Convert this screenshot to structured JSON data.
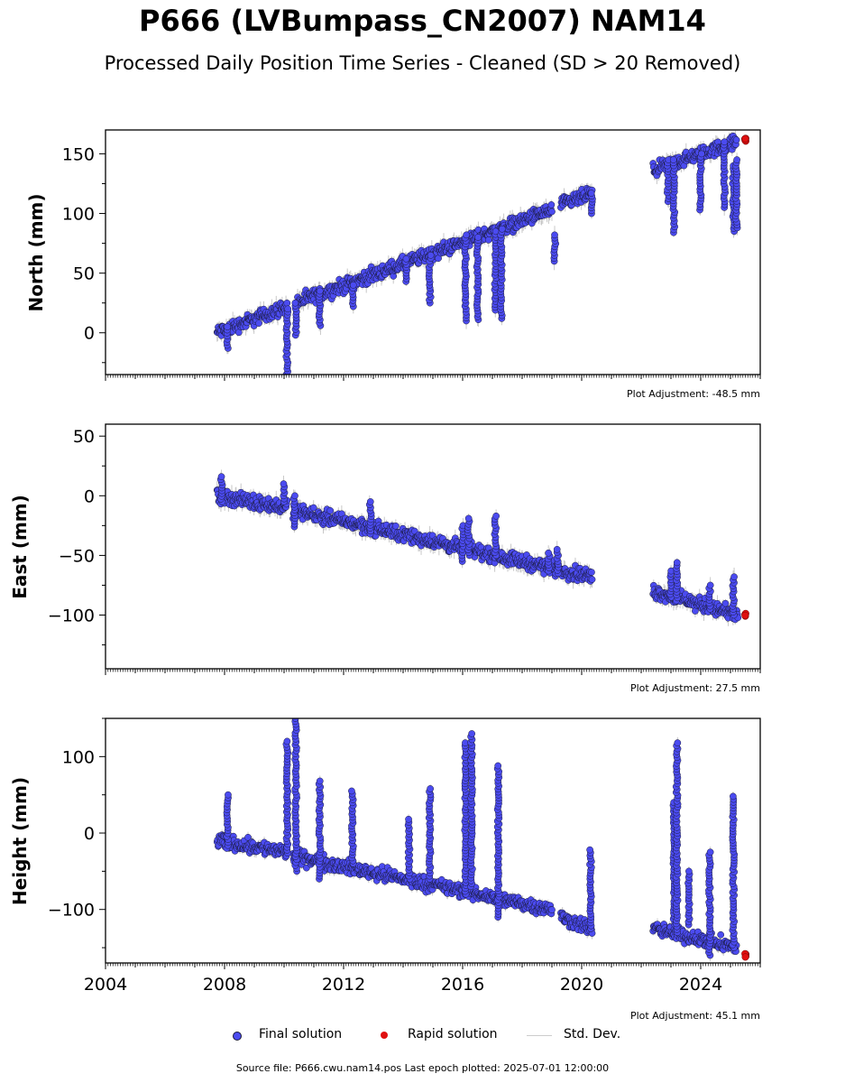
{
  "title": "P666 (LVBumpass_CN2007) NAM14",
  "subtitle": "Processed Daily Position Time Series - Cleaned (SD > 20 Removed)",
  "footer": "Source file: P666.cwu.nam14.pos  Last epoch plotted: 2025-07-01 12:00:00",
  "legend": {
    "final": "Final solution",
    "rapid": "Rapid solution",
    "std": "Std. Dev."
  },
  "colors": {
    "final": "#4b4bf0",
    "final_edge": "#1a1a3a",
    "rapid": "#e01010",
    "std": "#c8c8c8"
  },
  "chart_data": [
    {
      "type": "scatter",
      "ylabel": "North (mm)",
      "ylim": [
        -35,
        170
      ],
      "yticks": [
        0,
        50,
        100,
        150
      ],
      "ytick_labels": [
        "0",
        "50",
        "100",
        "150"
      ],
      "xlim": [
        2004,
        2026
      ],
      "show_x_labels": false,
      "adjustment": "Plot Adjustment: -48.5 mm",
      "segments": [
        {
          "x0": 2007.75,
          "x1": 2010.1,
          "y0": 0,
          "y1": 22
        },
        {
          "x0": 2010.4,
          "x1": 2019.0,
          "y0": 25,
          "y1": 103
        },
        {
          "x0": 2019.3,
          "x1": 2020.35,
          "y0": 107,
          "y1": 117
        },
        {
          "x0": 2022.4,
          "x1": 2025.2,
          "y0": 136,
          "y1": 160
        }
      ],
      "excursions": [
        {
          "x": 2008.1,
          "min": -13,
          "max": 5
        },
        {
          "x": 2010.1,
          "min": -35,
          "max": 20
        },
        {
          "x": 2010.4,
          "min": -2,
          "max": 25
        },
        {
          "x": 2011.2,
          "min": 6,
          "max": 35
        },
        {
          "x": 2012.3,
          "min": 22,
          "max": 40
        },
        {
          "x": 2014.1,
          "min": 43,
          "max": 62
        },
        {
          "x": 2014.9,
          "min": 25,
          "max": 65
        },
        {
          "x": 2016.1,
          "min": 10,
          "max": 82
        },
        {
          "x": 2016.5,
          "min": 11,
          "max": 80
        },
        {
          "x": 2017.1,
          "min": 19,
          "max": 85
        },
        {
          "x": 2017.3,
          "min": 12,
          "max": 87
        },
        {
          "x": 2019.1,
          "min": 60,
          "max": 82
        },
        {
          "x": 2020.35,
          "min": 100,
          "max": 117
        },
        {
          "x": 2022.9,
          "min": 110,
          "max": 145
        },
        {
          "x": 2023.1,
          "min": 84,
          "max": 145
        },
        {
          "x": 2024.0,
          "min": 103,
          "max": 150
        },
        {
          "x": 2024.8,
          "min": 105,
          "max": 160
        },
        {
          "x": 2025.1,
          "min": 85,
          "max": 140
        },
        {
          "x": 2025.2,
          "min": 88,
          "max": 145
        }
      ],
      "rapid": {
        "x": 2025.5,
        "y": 162
      }
    },
    {
      "type": "scatter",
      "ylabel": "East (mm)",
      "ylim": [
        -145,
        60
      ],
      "yticks": [
        -100,
        -50,
        0,
        50
      ],
      "ytick_labels": [
        "−100",
        "−50",
        "0",
        "50"
      ],
      "xlim": [
        2004,
        2026
      ],
      "show_x_labels": false,
      "adjustment": "Plot Adjustment: 27.5 mm",
      "segments": [
        {
          "x0": 2007.75,
          "x1": 2010.1,
          "y0": 0,
          "y1": -10
        },
        {
          "x0": 2010.3,
          "x1": 2020.35,
          "y0": -12,
          "y1": -68
        },
        {
          "x0": 2022.4,
          "x1": 2025.25,
          "y0": -80,
          "y1": -100
        }
      ],
      "excursions": [
        {
          "x": 2007.9,
          "min": -5,
          "max": 16
        },
        {
          "x": 2010.0,
          "min": -5,
          "max": 10
        },
        {
          "x": 2010.35,
          "min": -26,
          "max": 0
        },
        {
          "x": 2012.9,
          "min": -32,
          "max": -5
        },
        {
          "x": 2016.0,
          "min": -55,
          "max": -25
        },
        {
          "x": 2016.2,
          "min": -50,
          "max": -19
        },
        {
          "x": 2017.1,
          "min": -50,
          "max": -17
        },
        {
          "x": 2018.9,
          "min": -63,
          "max": -48
        },
        {
          "x": 2019.2,
          "min": -65,
          "max": -45
        },
        {
          "x": 2023.0,
          "min": -85,
          "max": -63
        },
        {
          "x": 2023.2,
          "min": -88,
          "max": -56
        },
        {
          "x": 2024.3,
          "min": -95,
          "max": -75
        },
        {
          "x": 2025.1,
          "min": -100,
          "max": -68
        }
      ],
      "rapid": {
        "x": 2025.5,
        "y": -100
      }
    },
    {
      "type": "scatter",
      "ylabel": "Height (mm)",
      "ylim": [
        -170,
        150
      ],
      "yticks": [
        -100,
        0,
        100
      ],
      "ytick_labels": [
        "−100",
        "0",
        "100"
      ],
      "xlim": [
        2004,
        2026
      ],
      "xticks": [
        2004,
        2008,
        2012,
        2016,
        2020,
        2024
      ],
      "xtick_labels": [
        "2004",
        "2008",
        "2012",
        "2016",
        "2020",
        "2024"
      ],
      "show_x_labels": true,
      "adjustment": "Plot Adjustment: 45.1 mm",
      "segments": [
        {
          "x0": 2007.75,
          "x1": 2010.1,
          "y0": -10,
          "y1": -25
        },
        {
          "x0": 2010.3,
          "x1": 2019.0,
          "y0": -30,
          "y1": -100
        },
        {
          "x0": 2019.3,
          "x1": 2020.35,
          "y0": -110,
          "y1": -125
        },
        {
          "x0": 2022.4,
          "x1": 2025.2,
          "y0": -125,
          "y1": -150
        }
      ],
      "excursions": [
        {
          "x": 2008.1,
          "min": -20,
          "max": 50
        },
        {
          "x": 2010.1,
          "min": -30,
          "max": 120
        },
        {
          "x": 2010.4,
          "min": -50,
          "max": 150
        },
        {
          "x": 2011.2,
          "min": -60,
          "max": 68
        },
        {
          "x": 2012.3,
          "min": -40,
          "max": 55
        },
        {
          "x": 2014.2,
          "min": -60,
          "max": 18
        },
        {
          "x": 2014.9,
          "min": -60,
          "max": 58
        },
        {
          "x": 2016.1,
          "min": -80,
          "max": 118
        },
        {
          "x": 2016.3,
          "min": -70,
          "max": 130
        },
        {
          "x": 2017.2,
          "min": -110,
          "max": 88
        },
        {
          "x": 2020.3,
          "min": -125,
          "max": -22
        },
        {
          "x": 2023.1,
          "min": -120,
          "max": 40
        },
        {
          "x": 2023.2,
          "min": -130,
          "max": 118
        },
        {
          "x": 2023.6,
          "min": -120,
          "max": -50
        },
        {
          "x": 2024.3,
          "min": -160,
          "max": -25
        },
        {
          "x": 2025.1,
          "min": -150,
          "max": 48
        }
      ],
      "rapid": {
        "x": 2025.5,
        "y": -160
      }
    }
  ]
}
